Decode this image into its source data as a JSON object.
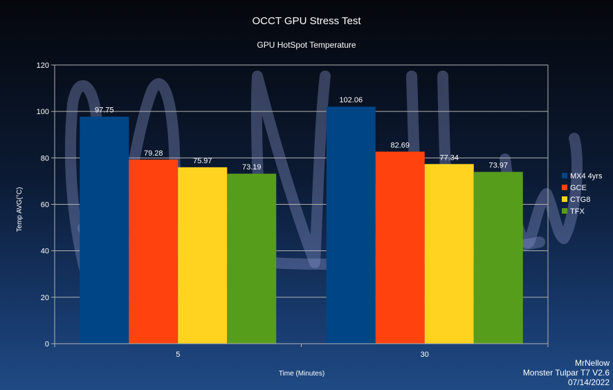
{
  "chart_data": {
    "type": "bar",
    "title": "OCCT GPU Stress Test",
    "subtitle": "GPU HotSpot Temperature",
    "xlabel": "Time (Minutes)",
    "ylabel": "Temp AVG(°C)",
    "ylim": [
      0,
      120
    ],
    "yticks": [
      0,
      20,
      40,
      60,
      80,
      100,
      120
    ],
    "grid": true,
    "legend_position": "right",
    "categories": [
      "5",
      "30"
    ],
    "series": [
      {
        "name": "MX4 4yrs",
        "color": "#004586",
        "values": [
          97.75,
          102.06
        ],
        "labels": [
          "97.75",
          "102.06"
        ]
      },
      {
        "name": "GCE",
        "color": "#ff420e",
        "values": [
          79.28,
          82.69
        ],
        "labels": [
          "79.28",
          "82.69"
        ]
      },
      {
        "name": "CTG8",
        "color": "#ffd320",
        "values": [
          75.97,
          77.34
        ],
        "labels": [
          "75.97",
          "77.34"
        ]
      },
      {
        "name": "TFX",
        "color": "#579d1c",
        "values": [
          73.19,
          73.97
        ],
        "labels": [
          "73.19",
          "73.97"
        ]
      }
    ]
  },
  "footer": {
    "author": "MrNellow",
    "device": "Monster Tulpar T7 V2.6",
    "date": "07/14/2022"
  },
  "watermark_text": "MrNellow"
}
